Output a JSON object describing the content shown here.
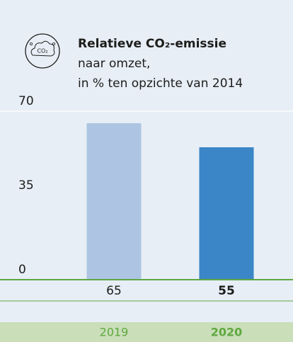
{
  "chart_data": {
    "type": "bar",
    "icon_label": "CO₂",
    "title": "Relatieve CO₂-emissie",
    "subtitle": [
      "naar omzet,",
      "in % ten opzichte van 2014"
    ],
    "categories": [
      "2019",
      "2020"
    ],
    "values": [
      65,
      55
    ],
    "colors": [
      "#adc5e3",
      "#3a86c6"
    ],
    "ylim": [
      0,
      70
    ],
    "yticks": [
      0,
      35,
      70
    ],
    "grid": false
  }
}
